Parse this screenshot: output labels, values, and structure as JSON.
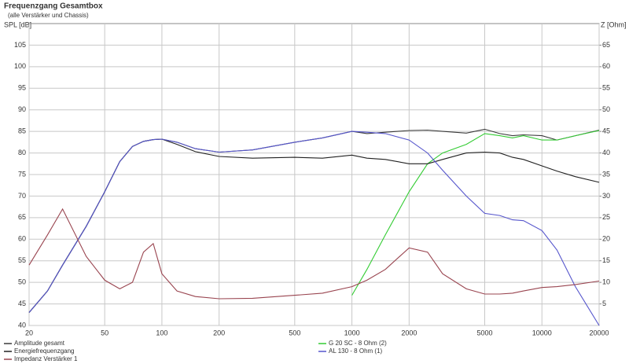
{
  "chart_data": {
    "type": "line",
    "title": "Frequenzgang Gesamtbox",
    "subtitle": "(alle Verstärker und Chassis)",
    "y_label": "SPL [dB]",
    "y2_label": "Z [Ohm]",
    "log_x": true,
    "grid": true,
    "x": [
      20,
      25,
      30,
      40,
      50,
      60,
      70,
      80,
      90,
      100,
      120,
      150,
      200,
      300,
      500,
      700,
      1000,
      1200,
      1500,
      2000,
      2500,
      3000,
      4000,
      5000,
      6000,
      7000,
      8000,
      10000,
      12000,
      15000,
      20000
    ],
    "xlim": [
      20,
      20000
    ],
    "xticks": [
      20,
      50,
      100,
      200,
      500,
      1000,
      2000,
      5000,
      10000,
      20000
    ],
    "ylim": [
      40,
      110
    ],
    "yticks": [
      40,
      45,
      50,
      55,
      60,
      65,
      70,
      75,
      80,
      85,
      90,
      95,
      100,
      105
    ],
    "y2lim": [
      0,
      70
    ],
    "y2ticks": [
      5,
      10,
      15,
      20,
      25,
      30,
      35,
      40,
      45,
      50,
      55,
      60,
      65
    ],
    "series": [
      {
        "name": "Amplitude gesamt",
        "color": "#3a3a3a",
        "values": [
          43,
          48,
          54,
          63,
          71,
          78,
          81.5,
          82.7,
          83.1,
          83.2,
          82.5,
          81,
          80.2,
          80.7,
          82.5,
          83.5,
          85,
          84.5,
          84.8,
          85.2,
          85.3,
          85,
          84.6,
          85.5,
          84.5,
          84,
          84.2,
          84,
          83,
          84,
          85.3
        ]
      },
      {
        "name": "G 20 SC - 8 Ohm (2)",
        "color": "#33cc33",
        "values": [
          null,
          null,
          null,
          null,
          null,
          null,
          null,
          null,
          null,
          null,
          null,
          null,
          null,
          null,
          null,
          null,
          47,
          53,
          61,
          71,
          77.5,
          80,
          82,
          84.5,
          84,
          83.5,
          84,
          83,
          83,
          84,
          85.2
        ]
      },
      {
        "name": "Energiefrequenzgang",
        "color": "#202020",
        "values": [
          43,
          48,
          54,
          63,
          71,
          78,
          81.5,
          82.7,
          83.1,
          83.2,
          82,
          80.3,
          79.2,
          78.8,
          79,
          78.8,
          79.5,
          78.8,
          78.5,
          77.5,
          77.5,
          78.5,
          80,
          80.2,
          80,
          79,
          78.5,
          77,
          75.8,
          74.5,
          73.2
        ]
      },
      {
        "name": "AL 130 - 8 Ohm (1)",
        "color": "#5555cc",
        "values": [
          43,
          48,
          54,
          63,
          71,
          78,
          81.5,
          82.7,
          83.1,
          83.2,
          82.5,
          81,
          80.2,
          80.7,
          82.5,
          83.5,
          85,
          84.8,
          84.5,
          83,
          80,
          76,
          70,
          66,
          65.5,
          64.5,
          64.3,
          62,
          57.5,
          49,
          40
        ]
      },
      {
        "name": "Impedanz Verstärker 1",
        "color": "#99444f",
        "axis": "y2",
        "values": [
          14,
          21,
          27,
          16,
          10.5,
          8.5,
          10,
          17,
          19,
          12,
          8,
          6.7,
          6.2,
          6.3,
          7,
          7.5,
          9,
          10.5,
          13,
          18,
          17,
          12,
          8.5,
          7.3,
          7.3,
          7.5,
          8,
          8.8,
          9,
          9.5,
          10.3
        ]
      }
    ]
  }
}
